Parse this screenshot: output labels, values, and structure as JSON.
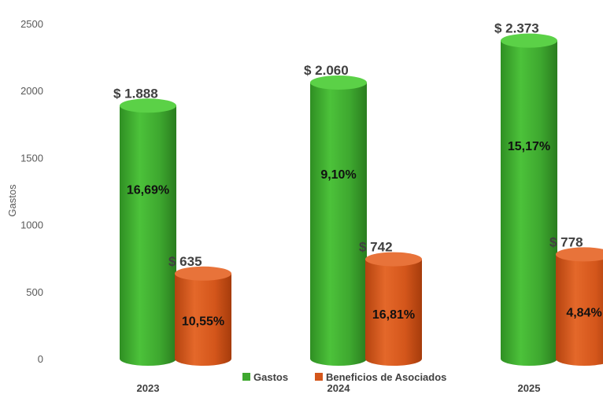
{
  "chart_data": {
    "type": "bar",
    "style": "3d-cylinder",
    "categories": [
      "2023",
      "2024",
      "2025"
    ],
    "ylabel": "Gastos",
    "ylim": [
      0,
      2500
    ],
    "yticks": [
      0,
      500,
      1000,
      1500,
      2000,
      2500
    ],
    "grid": false,
    "legend_position": "bottom",
    "series": [
      {
        "name": "Gastos",
        "color": "#3ea82f",
        "values": [
          1888,
          2060,
          2373
        ],
        "value_labels": [
          "$ 1.888",
          "$ 2.060",
          "$ 2.373"
        ],
        "pct_labels": [
          "16,69%",
          "9,10%",
          "15,17%"
        ]
      },
      {
        "name": "Beneficios de Asociados",
        "color": "#d4561b",
        "values": [
          635,
          742,
          778
        ],
        "value_labels": [
          "$ 635",
          "$ 742",
          "$ 778"
        ],
        "pct_labels": [
          "10,55%",
          "16,81%",
          "4,84%"
        ]
      }
    ]
  }
}
